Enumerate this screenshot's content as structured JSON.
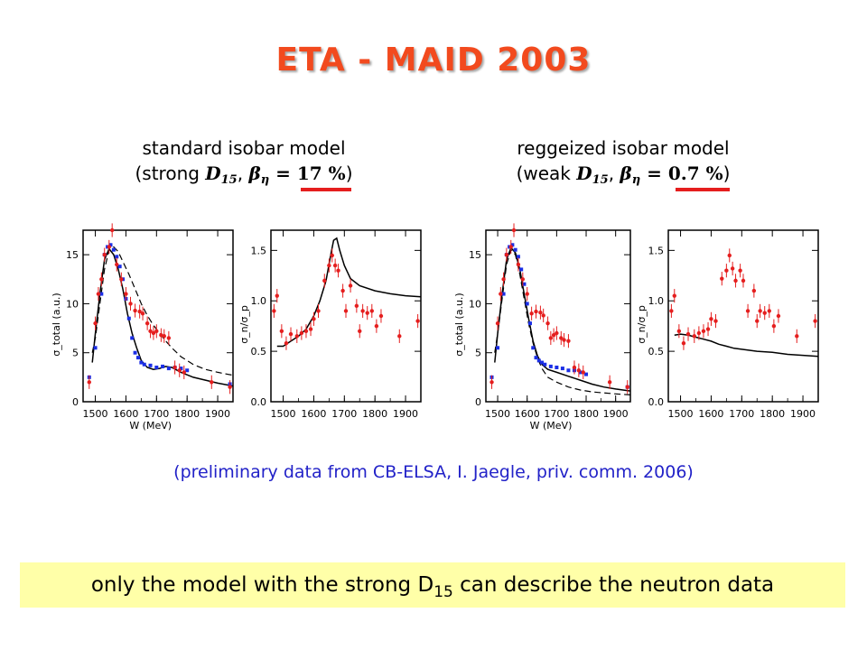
{
  "title": "ETA - MAID 2003",
  "left_model": {
    "line1": "standard isobar model",
    "open": "(strong ",
    "wave": "D",
    "wave_sub": "15",
    "comma": ",  ",
    "beta": "β",
    "beta_sub": "η",
    "eq": " = ",
    "value": "17 %",
    "close": ")"
  },
  "right_model": {
    "line1": "reggeized isobar model",
    "open": "(weak ",
    "wave": "D",
    "wave_sub": "15",
    "comma": ",  ",
    "beta": "β",
    "beta_sub": "η",
    "eq": " = ",
    "value": "0.7 %",
    "close": ")"
  },
  "note": "(preliminary data from CB-ELSA, I. Jaegle, priv. comm. 2006)",
  "conclusion": {
    "before": "only the model with the strong D",
    "sub": "15",
    "after": " can describe the neutron data"
  },
  "colors": {
    "title": "#f24a1e",
    "red_data": "#e51e1e",
    "blue_data": "#1a2ee6",
    "note": "#2222c8",
    "highlight": "#ffffa8"
  },
  "chart_data": [
    {
      "type": "scatter",
      "panel": "standard model - total cross section",
      "xlabel": "W (MeV)",
      "ylabel": "σ_total (a.u.)",
      "xlim": [
        1460,
        1950
      ],
      "ylim": [
        0,
        17.5
      ],
      "xticks": [
        1500,
        1600,
        1700,
        1800,
        1900
      ],
      "yticks": [
        0,
        5,
        10,
        15
      ],
      "red_points": [
        [
          1480,
          2
        ],
        [
          1500,
          8
        ],
        [
          1510,
          11
        ],
        [
          1520,
          12.5
        ],
        [
          1530,
          15
        ],
        [
          1545,
          15.8
        ],
        [
          1555,
          17.5
        ],
        [
          1570,
          14
        ],
        [
          1585,
          12.5
        ],
        [
          1600,
          11
        ],
        [
          1615,
          10
        ],
        [
          1630,
          9.3
        ],
        [
          1645,
          9.2
        ],
        [
          1655,
          9.0
        ],
        [
          1670,
          8
        ],
        [
          1680,
          7.2
        ],
        [
          1690,
          7
        ],
        [
          1700,
          7.2
        ],
        [
          1715,
          6.8
        ],
        [
          1725,
          6.7
        ],
        [
          1740,
          6.5
        ],
        [
          1760,
          3.5
        ],
        [
          1775,
          3.2
        ],
        [
          1790,
          3
        ],
        [
          1880,
          2
        ],
        [
          1940,
          1.5
        ]
      ],
      "blue_points": [
        [
          1480,
          2.5
        ],
        [
          1500,
          5.5
        ],
        [
          1520,
          11
        ],
        [
          1530,
          15
        ],
        [
          1540,
          15.8
        ],
        [
          1550,
          16
        ],
        [
          1560,
          15.5
        ],
        [
          1570,
          14.8
        ],
        [
          1580,
          13.8
        ],
        [
          1590,
          12.5
        ],
        [
          1600,
          10.5
        ],
        [
          1610,
          8.5
        ],
        [
          1620,
          6.5
        ],
        [
          1630,
          5
        ],
        [
          1640,
          4.5
        ],
        [
          1650,
          4
        ],
        [
          1660,
          3.8
        ],
        [
          1680,
          3.7
        ],
        [
          1700,
          3.5
        ],
        [
          1720,
          3.6
        ],
        [
          1740,
          3.4
        ],
        [
          1760,
          3.5
        ],
        [
          1780,
          3.4
        ],
        [
          1800,
          3.2
        ],
        [
          1940,
          1.8
        ]
      ],
      "solid_line": [
        [
          1490,
          4
        ],
        [
          1500,
          7
        ],
        [
          1515,
          11
        ],
        [
          1530,
          14.5
        ],
        [
          1545,
          15.6
        ],
        [
          1560,
          15
        ],
        [
          1575,
          13.5
        ],
        [
          1590,
          11.5
        ],
        [
          1605,
          9
        ],
        [
          1620,
          7
        ],
        [
          1635,
          5.5
        ],
        [
          1650,
          4.2
        ],
        [
          1670,
          3.5
        ],
        [
          1690,
          3.3
        ],
        [
          1710,
          3.4
        ],
        [
          1730,
          3.6
        ],
        [
          1750,
          3.5
        ],
        [
          1780,
          3
        ],
        [
          1820,
          2.5
        ],
        [
          1860,
          2.2
        ],
        [
          1900,
          1.9
        ],
        [
          1950,
          1.6
        ]
      ],
      "dashed_line": [
        [
          1490,
          5
        ],
        [
          1500,
          6.5
        ],
        [
          1515,
          10
        ],
        [
          1530,
          13.5
        ],
        [
          1545,
          15.5
        ],
        [
          1560,
          15.8
        ],
        [
          1575,
          15.3
        ],
        [
          1590,
          14.3
        ],
        [
          1610,
          13
        ],
        [
          1630,
          11.5
        ],
        [
          1650,
          10
        ],
        [
          1670,
          8.8
        ],
        [
          1690,
          7.8
        ],
        [
          1710,
          7
        ],
        [
          1730,
          6.2
        ],
        [
          1750,
          5.5
        ],
        [
          1780,
          4.6
        ],
        [
          1820,
          3.8
        ],
        [
          1860,
          3.3
        ],
        [
          1900,
          3
        ],
        [
          1950,
          2.7
        ]
      ]
    },
    {
      "type": "scatter",
      "panel": "standard model - neutron/proton ratio",
      "xlabel": "",
      "ylabel": "σ_n/σ_p",
      "xlim": [
        1460,
        1950
      ],
      "ylim": [
        0,
        1.7
      ],
      "xticks": [
        1500,
        1600,
        1700,
        1800,
        1900
      ],
      "yticks": [
        0.0,
        0.5,
        1.0,
        1.5
      ],
      "red_points": [
        [
          1470,
          0.9
        ],
        [
          1480,
          1.05
        ],
        [
          1495,
          0.7
        ],
        [
          1510,
          0.58
        ],
        [
          1525,
          0.67
        ],
        [
          1545,
          0.65
        ],
        [
          1560,
          0.68
        ],
        [
          1575,
          0.7
        ],
        [
          1590,
          0.72
        ],
        [
          1600,
          0.82
        ],
        [
          1615,
          0.9
        ],
        [
          1635,
          1.2
        ],
        [
          1650,
          1.35
        ],
        [
          1660,
          1.45
        ],
        [
          1670,
          1.35
        ],
        [
          1680,
          1.3
        ],
        [
          1695,
          1.1
        ],
        [
          1705,
          0.9
        ],
        [
          1720,
          1.15
        ],
        [
          1740,
          0.95
        ],
        [
          1750,
          0.7
        ],
        [
          1760,
          0.9
        ],
        [
          1775,
          0.88
        ],
        [
          1790,
          0.9
        ],
        [
          1805,
          0.75
        ],
        [
          1820,
          0.85
        ],
        [
          1880,
          0.65
        ],
        [
          1940,
          0.8
        ]
      ],
      "solid_line": [
        [
          1480,
          0.55
        ],
        [
          1500,
          0.55
        ],
        [
          1525,
          0.6
        ],
        [
          1550,
          0.65
        ],
        [
          1575,
          0.72
        ],
        [
          1600,
          0.85
        ],
        [
          1620,
          1.0
        ],
        [
          1640,
          1.2
        ],
        [
          1655,
          1.45
        ],
        [
          1665,
          1.6
        ],
        [
          1675,
          1.62
        ],
        [
          1685,
          1.5
        ],
        [
          1700,
          1.35
        ],
        [
          1720,
          1.22
        ],
        [
          1750,
          1.15
        ],
        [
          1800,
          1.1
        ],
        [
          1850,
          1.07
        ],
        [
          1900,
          1.05
        ],
        [
          1950,
          1.04
        ]
      ]
    },
    {
      "type": "scatter",
      "panel": "reggeized model - total cross section",
      "xlabel": "W (MeV)",
      "ylabel": "σ_total (a.u.)",
      "xlim": [
        1460,
        1950
      ],
      "ylim": [
        0,
        17.5
      ],
      "xticks": [
        1500,
        1600,
        1700,
        1800,
        1900
      ],
      "yticks": [
        0,
        5,
        10,
        15
      ],
      "red_points": [
        [
          1480,
          2
        ],
        [
          1500,
          8
        ],
        [
          1510,
          11
        ],
        [
          1520,
          12.5
        ],
        [
          1530,
          15
        ],
        [
          1545,
          15.8
        ],
        [
          1555,
          17.5
        ],
        [
          1570,
          14
        ],
        [
          1585,
          12.5
        ],
        [
          1600,
          11
        ],
        [
          1615,
          9
        ],
        [
          1630,
          9.2
        ],
        [
          1645,
          9.1
        ],
        [
          1655,
          8.8
        ],
        [
          1670,
          8
        ],
        [
          1680,
          6.5
        ],
        [
          1690,
          6.8
        ],
        [
          1700,
          7
        ],
        [
          1715,
          6.5
        ],
        [
          1725,
          6.3
        ],
        [
          1740,
          6.2
        ],
        [
          1760,
          3.5
        ],
        [
          1775,
          3.2
        ],
        [
          1790,
          3
        ],
        [
          1880,
          2
        ],
        [
          1940,
          1.5
        ]
      ],
      "blue_points": [
        [
          1480,
          2.5
        ],
        [
          1500,
          5.5
        ],
        [
          1520,
          11
        ],
        [
          1530,
          15
        ],
        [
          1540,
          15.8
        ],
        [
          1550,
          16
        ],
        [
          1560,
          15.5
        ],
        [
          1570,
          14.8
        ],
        [
          1580,
          13.5
        ],
        [
          1590,
          12
        ],
        [
          1600,
          10
        ],
        [
          1610,
          8
        ],
        [
          1620,
          5.5
        ],
        [
          1630,
          4.5
        ],
        [
          1640,
          4.2
        ],
        [
          1650,
          4
        ],
        [
          1660,
          3.8
        ],
        [
          1680,
          3.6
        ],
        [
          1700,
          3.5
        ],
        [
          1720,
          3.4
        ],
        [
          1740,
          3.2
        ],
        [
          1760,
          3.2
        ],
        [
          1780,
          3
        ],
        [
          1800,
          2.8
        ],
        [
          1940,
          1.5
        ]
      ],
      "solid_line": [
        [
          1490,
          4
        ],
        [
          1500,
          7
        ],
        [
          1515,
          11
        ],
        [
          1530,
          14.5
        ],
        [
          1545,
          15.7
        ],
        [
          1560,
          15.2
        ],
        [
          1575,
          13.5
        ],
        [
          1590,
          11
        ],
        [
          1605,
          8.5
        ],
        [
          1620,
          6.2
        ],
        [
          1635,
          4.7
        ],
        [
          1650,
          3.8
        ],
        [
          1670,
          3.3
        ],
        [
          1700,
          3
        ],
        [
          1740,
          2.6
        ],
        [
          1780,
          2.2
        ],
        [
          1820,
          1.8
        ],
        [
          1860,
          1.5
        ],
        [
          1900,
          1.3
        ],
        [
          1950,
          1.1
        ]
      ],
      "dashed_line": [
        [
          1490,
          5
        ],
        [
          1500,
          7
        ],
        [
          1515,
          10.5
        ],
        [
          1530,
          14
        ],
        [
          1545,
          15.5
        ],
        [
          1560,
          15
        ],
        [
          1575,
          13
        ],
        [
          1590,
          10.5
        ],
        [
          1605,
          8
        ],
        [
          1620,
          6
        ],
        [
          1635,
          4.5
        ],
        [
          1650,
          3.4
        ],
        [
          1670,
          2.5
        ],
        [
          1700,
          2
        ],
        [
          1740,
          1.5
        ],
        [
          1780,
          1.2
        ],
        [
          1820,
          1
        ],
        [
          1860,
          0.9
        ],
        [
          1900,
          0.8
        ],
        [
          1950,
          0.7
        ]
      ]
    },
    {
      "type": "scatter",
      "panel": "reggeized model - neutron/proton ratio",
      "xlabel": "",
      "ylabel": "σ_n/σ_p",
      "xlim": [
        1460,
        1950
      ],
      "ylim": [
        0,
        1.7
      ],
      "xticks": [
        1500,
        1600,
        1700,
        1800,
        1900
      ],
      "yticks": [
        0.0,
        0.5,
        1.0,
        1.5
      ],
      "red_points": [
        [
          1470,
          0.9
        ],
        [
          1480,
          1.05
        ],
        [
          1495,
          0.7
        ],
        [
          1510,
          0.58
        ],
        [
          1525,
          0.67
        ],
        [
          1545,
          0.65
        ],
        [
          1560,
          0.68
        ],
        [
          1575,
          0.7
        ],
        [
          1590,
          0.72
        ],
        [
          1600,
          0.82
        ],
        [
          1615,
          0.8
        ],
        [
          1635,
          1.22
        ],
        [
          1650,
          1.3
        ],
        [
          1660,
          1.45
        ],
        [
          1670,
          1.32
        ],
        [
          1680,
          1.2
        ],
        [
          1695,
          1.3
        ],
        [
          1705,
          1.2
        ],
        [
          1720,
          0.9
        ],
        [
          1740,
          1.1
        ],
        [
          1750,
          0.8
        ],
        [
          1760,
          0.9
        ],
        [
          1775,
          0.88
        ],
        [
          1790,
          0.9
        ],
        [
          1805,
          0.75
        ],
        [
          1820,
          0.85
        ],
        [
          1880,
          0.65
        ],
        [
          1940,
          0.8
        ]
      ],
      "solid_line": [
        [
          1480,
          0.66
        ],
        [
          1500,
          0.67
        ],
        [
          1525,
          0.66
        ],
        [
          1550,
          0.64
        ],
        [
          1575,
          0.62
        ],
        [
          1600,
          0.6
        ],
        [
          1625,
          0.57
        ],
        [
          1650,
          0.55
        ],
        [
          1675,
          0.53
        ],
        [
          1700,
          0.52
        ],
        [
          1725,
          0.51
        ],
        [
          1750,
          0.5
        ],
        [
          1800,
          0.49
        ],
        [
          1850,
          0.47
        ],
        [
          1900,
          0.46
        ],
        [
          1950,
          0.45
        ]
      ]
    }
  ]
}
